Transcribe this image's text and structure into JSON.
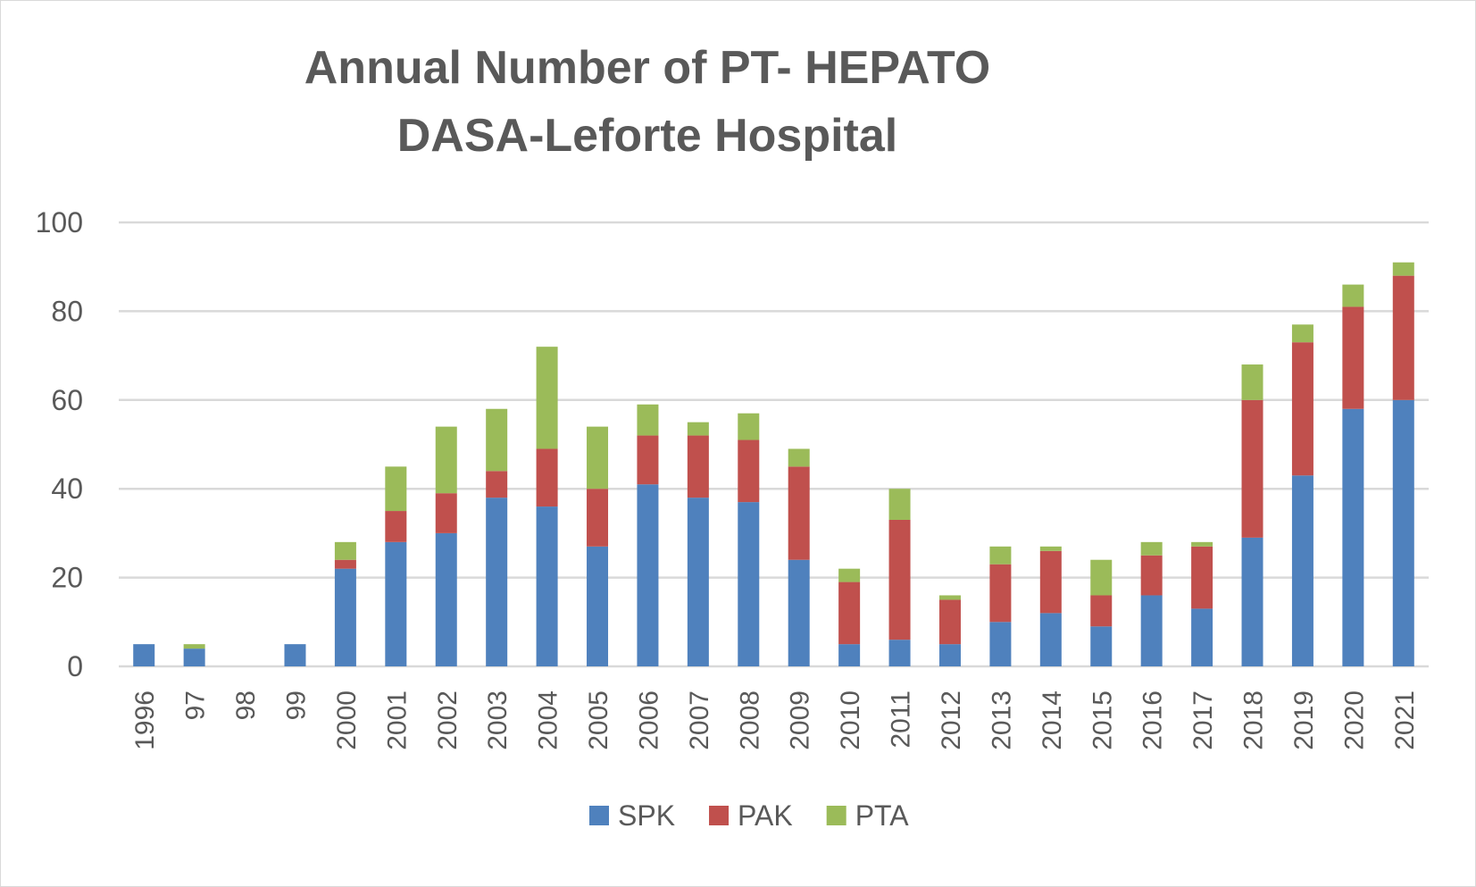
{
  "chart_data": {
    "type": "bar",
    "stacked": true,
    "title": [
      "Annual Number of PT- HEPATO",
      "DASA-Leforte  Hospital"
    ],
    "xlabel": "",
    "ylabel": "",
    "ylim": [
      0,
      100
    ],
    "yticks": [
      0,
      20,
      40,
      60,
      80,
      100
    ],
    "grid": true,
    "legend_position": "bottom",
    "categories": [
      "1996",
      "97",
      "98",
      "99",
      "2000",
      "2001",
      "2002",
      "2003",
      "2004",
      "2005",
      "2006",
      "2007",
      "2008",
      "2009",
      "2010",
      "2011",
      "2012",
      "2013",
      "2014",
      "2015",
      "2016",
      "2017",
      "2018",
      "2019",
      "2020",
      "2021"
    ],
    "series": [
      {
        "name": "SPK",
        "color": "#4f81bd",
        "values": [
          5,
          4,
          0,
          5,
          22,
          28,
          30,
          38,
          36,
          27,
          41,
          38,
          37,
          24,
          5,
          6,
          5,
          10,
          12,
          9,
          16,
          13,
          29,
          43,
          58,
          60
        ]
      },
      {
        "name": "PAK",
        "color": "#c0504d",
        "values": [
          0,
          0,
          0,
          0,
          2,
          7,
          9,
          6,
          13,
          13,
          11,
          14,
          14,
          21,
          14,
          27,
          10,
          13,
          14,
          7,
          9,
          14,
          31,
          30,
          23,
          28
        ]
      },
      {
        "name": "PTA",
        "color": "#9bbb59",
        "values": [
          0,
          1,
          0,
          0,
          4,
          10,
          15,
          14,
          23,
          14,
          7,
          3,
          6,
          4,
          3,
          7,
          1,
          4,
          1,
          8,
          3,
          1,
          8,
          4,
          5,
          3
        ]
      }
    ]
  },
  "colors": {
    "text": "#595959",
    "grid": "#d9d9d9",
    "border": "#d9d9d9"
  }
}
